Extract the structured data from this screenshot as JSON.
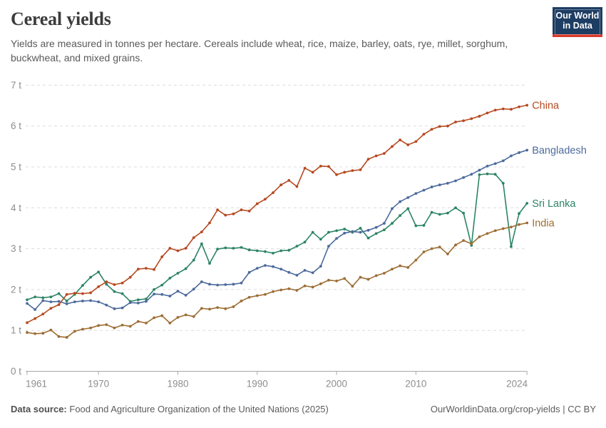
{
  "header": {
    "title": "Cereal yields",
    "subtitle": "Yields are measured in tonnes per hectare. Cereals include wheat, rice, maize, barley, oats, rye, millet, sorghum, buckwheat, and mixed grains."
  },
  "logo": {
    "line1": "Our World",
    "line2": "in Data",
    "bg_color": "#1d3d63",
    "stripe_color": "#d93a2b"
  },
  "footer": {
    "source_label": "Data source:",
    "source_text": "Food and Agriculture Organization of the United Nations (2025)",
    "license_text": "OurWorldinData.org/crop-yields | CC BY"
  },
  "chart_data": {
    "type": "line",
    "title": "Cereal yields",
    "ylabel": "tonnes per hectare",
    "unit": "t",
    "ylim": [
      0,
      7
    ],
    "yticks": [
      0,
      1,
      2,
      3,
      4,
      5,
      6,
      7
    ],
    "ytick_suffix": " t",
    "xlim": [
      1961,
      2024
    ],
    "xticks": [
      1961,
      1970,
      1980,
      1990,
      2000,
      2010,
      2024
    ],
    "grid": "horizontal-dashed",
    "legend": "line-end-labels",
    "grid_color": "#dcdcdc",
    "axis_color": "#a8a8a8",
    "tick_text_color": "#8e8e8e",
    "years": [
      1961,
      1962,
      1963,
      1964,
      1965,
      1966,
      1967,
      1968,
      1969,
      1970,
      1971,
      1972,
      1973,
      1974,
      1975,
      1976,
      1977,
      1978,
      1979,
      1980,
      1981,
      1982,
      1983,
      1984,
      1985,
      1986,
      1987,
      1988,
      1989,
      1990,
      1991,
      1992,
      1993,
      1994,
      1995,
      1996,
      1997,
      1998,
      1999,
      2000,
      2001,
      2002,
      2003,
      2004,
      2005,
      2006,
      2007,
      2008,
      2009,
      2010,
      2011,
      2012,
      2013,
      2014,
      2015,
      2016,
      2017,
      2018,
      2019,
      2020,
      2021,
      2022,
      2023,
      2024
    ],
    "series": [
      {
        "name": "Sri Lanka",
        "color": "#2C8465",
        "values": [
          1.75,
          1.82,
          1.8,
          1.82,
          1.9,
          1.72,
          1.88,
          2.1,
          2.3,
          2.43,
          2.13,
          1.95,
          1.9,
          1.71,
          1.75,
          1.77,
          2.0,
          2.11,
          2.28,
          2.4,
          2.51,
          2.72,
          3.12,
          2.64,
          2.99,
          3.02,
          3.01,
          3.03,
          2.97,
          2.95,
          2.93,
          2.89,
          2.95,
          2.96,
          3.06,
          3.16,
          3.4,
          3.23,
          3.4,
          3.44,
          3.48,
          3.4,
          3.5,
          3.26,
          3.37,
          3.46,
          3.62,
          3.81,
          3.98,
          3.56,
          3.57,
          3.89,
          3.84,
          3.87,
          4.0,
          3.87,
          3.08,
          4.81,
          4.83,
          4.82,
          4.6,
          3.05,
          3.86,
          4.11
        ]
      },
      {
        "name": "India",
        "color": "#9D6D34",
        "values": [
          0.95,
          0.92,
          0.93,
          1.01,
          0.85,
          0.83,
          0.98,
          1.03,
          1.06,
          1.12,
          1.14,
          1.06,
          1.13,
          1.1,
          1.22,
          1.18,
          1.31,
          1.36,
          1.18,
          1.32,
          1.38,
          1.34,
          1.54,
          1.52,
          1.56,
          1.53,
          1.58,
          1.72,
          1.81,
          1.85,
          1.88,
          1.95,
          1.99,
          2.02,
          1.98,
          2.09,
          2.06,
          2.14,
          2.23,
          2.21,
          2.27,
          2.08,
          2.3,
          2.25,
          2.34,
          2.4,
          2.5,
          2.58,
          2.54,
          2.72,
          2.92,
          3.0,
          3.04,
          2.87,
          3.09,
          3.2,
          3.12,
          3.29,
          3.37,
          3.44,
          3.49,
          3.53,
          3.59,
          3.63
        ]
      },
      {
        "name": "Bangladesh",
        "color": "#4C6A9C",
        "values": [
          1.66,
          1.51,
          1.73,
          1.7,
          1.71,
          1.65,
          1.7,
          1.72,
          1.73,
          1.7,
          1.62,
          1.53,
          1.55,
          1.68,
          1.67,
          1.71,
          1.89,
          1.88,
          1.84,
          1.96,
          1.86,
          2.01,
          2.19,
          2.13,
          2.11,
          2.12,
          2.13,
          2.16,
          2.42,
          2.52,
          2.59,
          2.56,
          2.5,
          2.42,
          2.35,
          2.47,
          2.41,
          2.57,
          3.06,
          3.25,
          3.38,
          3.42,
          3.4,
          3.45,
          3.52,
          3.62,
          3.98,
          4.15,
          4.25,
          4.35,
          4.43,
          4.51,
          4.56,
          4.6,
          4.66,
          4.74,
          4.82,
          4.92,
          5.02,
          5.08,
          5.15,
          5.27,
          5.35,
          5.41
        ]
      },
      {
        "name": "China",
        "color": "#B64920",
        "values": [
          1.19,
          1.29,
          1.4,
          1.54,
          1.63,
          1.88,
          1.91,
          1.9,
          1.92,
          2.07,
          2.19,
          2.12,
          2.16,
          2.3,
          2.5,
          2.52,
          2.49,
          2.8,
          3.01,
          2.95,
          3.01,
          3.27,
          3.41,
          3.63,
          3.95,
          3.82,
          3.85,
          3.95,
          3.92,
          4.1,
          4.21,
          4.37,
          4.56,
          4.67,
          4.52,
          4.97,
          4.87,
          5.02,
          5.01,
          4.81,
          4.87,
          4.91,
          4.93,
          5.19,
          5.27,
          5.33,
          5.5,
          5.66,
          5.54,
          5.62,
          5.8,
          5.92,
          5.99,
          6.0,
          6.1,
          6.13,
          6.18,
          6.24,
          6.32,
          6.39,
          6.42,
          6.41,
          6.47,
          6.51
        ]
      }
    ]
  }
}
